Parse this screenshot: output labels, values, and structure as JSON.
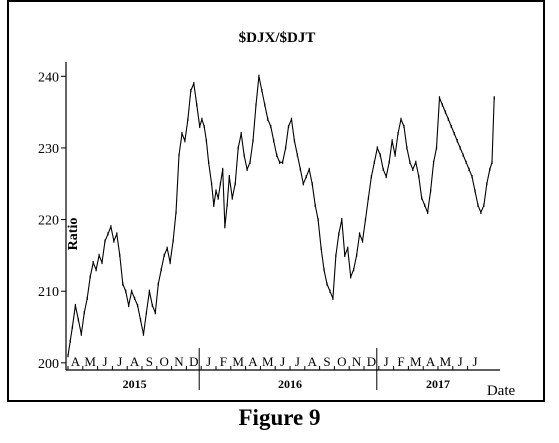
{
  "figure": {
    "caption": "Figure 9"
  },
  "chart_data": {
    "type": "line",
    "title": "$DJX/$DJT",
    "xlabel": "Date",
    "ylabel": "Ratio",
    "ylim": [
      199,
      242
    ],
    "yticks": [
      200,
      210,
      220,
      230,
      240
    ],
    "grid": false,
    "legend": "none",
    "line_color": "#000000",
    "marker": "small-tick",
    "month_labels": [
      "A",
      "M",
      "J",
      "J",
      "A",
      "S",
      "O",
      "N",
      "D",
      "J",
      "F",
      "M",
      "A",
      "M",
      "J",
      "J",
      "A",
      "S",
      "O",
      "N",
      "D",
      "J",
      "F",
      "M",
      "A",
      "M",
      "J",
      "J"
    ],
    "years": [
      {
        "label": "2015",
        "month_start": 0,
        "month_end": 9
      },
      {
        "label": "2016",
        "month_start": 9,
        "month_end": 21
      },
      {
        "label": "2017",
        "month_start": 21,
        "month_end": 29
      }
    ],
    "year_dividers": [
      9,
      21
    ],
    "series": [
      {
        "x_months": [
          0,
          0.15,
          0.3,
          0.5,
          0.7,
          0.9,
          1.1,
          1.3,
          1.5,
          1.7,
          1.9,
          2.1,
          2.3,
          2.5,
          2.7,
          2.9,
          3.1,
          3.3,
          3.5,
          3.7,
          3.9,
          4.1,
          4.3,
          4.5,
          4.7,
          4.9,
          5.1,
          5.3,
          5.5,
          5.7,
          5.9,
          6.1,
          6.3,
          6.5,
          6.7,
          6.9,
          7.1,
          7.3,
          7.5,
          7.7,
          7.9,
          8.1,
          8.3,
          8.5,
          8.7,
          8.9,
          9.05,
          9.2,
          9.35,
          9.5,
          9.7,
          9.85,
          10.0,
          10.15,
          10.3,
          10.45,
          10.6,
          10.75,
          10.9,
          11.1,
          11.3,
          11.5,
          11.7,
          11.9,
          12.1,
          12.3,
          12.5,
          12.7,
          12.9,
          13.1,
          13.3,
          13.5,
          13.7,
          13.9,
          14.1,
          14.3,
          14.5,
          14.7,
          14.9,
          15.1,
          15.3,
          15.5,
          15.7,
          15.9,
          16.1,
          16.3,
          16.5,
          16.7,
          16.9,
          17.1,
          17.3,
          17.5,
          17.7,
          17.9,
          18.1,
          18.3,
          18.5,
          18.7,
          18.9,
          19.1,
          19.3,
          19.5,
          19.7,
          19.9,
          20.1,
          20.3,
          20.5,
          20.7,
          20.9,
          21.1,
          21.3,
          21.5,
          21.7,
          21.9,
          22.1,
          22.3,
          22.5,
          22.7,
          22.9,
          23.1,
          23.3,
          23.5,
          23.7,
          23.9,
          24.1,
          24.3,
          24.5,
          24.7,
          24.9,
          25.1,
          25.3,
          25.5,
          25.7,
          25.9,
          26.1,
          26.3,
          26.5,
          26.7,
          26.9,
          27.1,
          27.3,
          27.5,
          27.7,
          27.9,
          28.1,
          28.3,
          28.5,
          28.65,
          28.8
        ],
        "values": [
          201,
          203,
          205,
          208,
          206,
          204,
          207,
          209,
          212,
          214,
          213,
          215,
          214,
          217,
          218,
          219,
          217,
          218,
          215,
          211,
          210,
          208,
          210,
          209,
          208,
          206,
          204,
          207,
          210,
          208,
          207,
          211,
          213,
          215,
          216,
          214,
          217,
          221,
          229,
          232,
          231,
          234,
          238,
          239,
          236,
          233,
          234,
          233,
          231,
          228,
          225,
          222,
          224,
          223,
          225,
          227,
          219,
          222,
          226,
          223,
          225,
          230,
          232,
          229,
          227,
          228,
          231,
          236,
          240,
          238,
          236,
          234,
          233,
          231,
          229,
          228,
          228,
          230,
          233,
          234,
          231,
          229,
          227,
          225,
          226,
          227,
          225,
          222,
          220,
          216,
          213,
          211,
          210,
          209,
          215,
          218,
          220,
          215,
          216,
          212,
          213,
          215,
          218,
          217,
          220,
          223,
          226,
          228,
          230,
          229,
          227,
          226,
          228,
          231,
          229,
          232,
          234,
          233,
          230,
          228,
          227,
          228,
          226,
          223,
          222,
          221,
          224,
          228,
          230,
          237,
          236,
          235,
          234,
          233,
          232,
          231,
          230,
          229,
          228,
          227,
          226,
          224,
          222,
          221,
          222,
          225,
          227,
          228,
          237
        ]
      }
    ]
  }
}
